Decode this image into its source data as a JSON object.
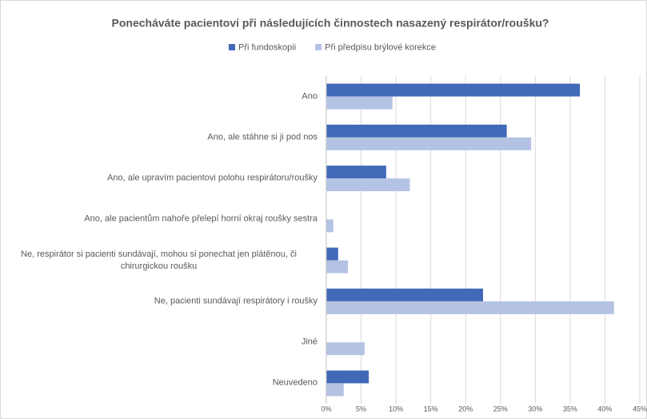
{
  "chart_data": {
    "type": "barh",
    "title": "Ponecháváte pacientovi při následujících činnostech nasazený respirátor/roušku?",
    "categories": [
      "Ano",
      "Ano, ale stáhne si ji pod nos",
      "Ano, ale upravím pacientovi polohu respirátoru/roušky",
      "Ano, ale pacientům nahoře přelepí horní okraj roušky sestra",
      "Ne, respirátor si pacienti sundávají, mohou si ponechat jen plátěnou, či chirurgickou roušku",
      "Ne, pacienti sundávají respirátory i roušky",
      "Jiné",
      "Neuvedeno"
    ],
    "series": [
      {
        "name": "Při fundoskopii",
        "color": "#4169b8",
        "values": [
          36.4,
          25.9,
          8.6,
          0,
          1.7,
          22.5,
          0,
          6.1
        ]
      },
      {
        "name": "Při předpisu brýlové korekce",
        "color": "#b4c3e4",
        "values": [
          9.5,
          29.4,
          12.0,
          1.0,
          3.1,
          41.3,
          5.5,
          2.5
        ]
      }
    ],
    "xlim": [
      0,
      45
    ],
    "xticks": [
      {
        "value": 0,
        "label": "0%"
      },
      {
        "value": 5,
        "label": "5%"
      },
      {
        "value": 10,
        "label": "10%"
      },
      {
        "value": 15,
        "label": "15%"
      },
      {
        "value": 20,
        "label": "20%"
      },
      {
        "value": 25,
        "label": "25%"
      },
      {
        "value": 30,
        "label": "30%"
      },
      {
        "value": 35,
        "label": "35%"
      },
      {
        "value": 40,
        "label": "40%"
      },
      {
        "value": 45,
        "label": "45%"
      }
    ],
    "grid": true,
    "legend": "top"
  }
}
